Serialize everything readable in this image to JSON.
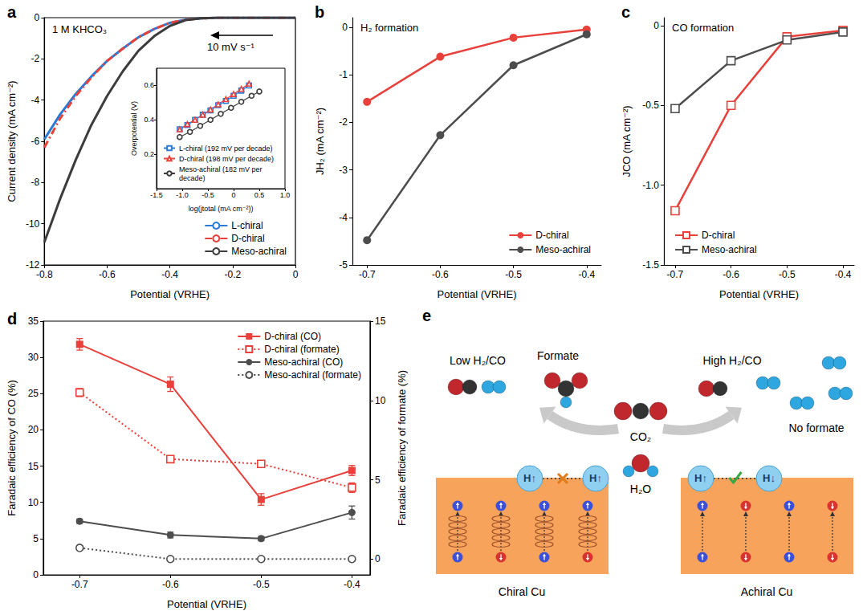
{
  "chart_data": [
    {
      "panel": "a",
      "type": "line",
      "annotations": [
        "1 M KHCO₃",
        "10 mV s⁻¹"
      ],
      "x_label": "Potential (VRHE)",
      "y_label": "Current density (mA cm⁻²)",
      "x": [
        -0.8,
        -0.75,
        -0.7,
        -0.65,
        -0.6,
        -0.55,
        -0.5,
        -0.45,
        -0.4,
        -0.35,
        -0.3,
        -0.25,
        -0.2,
        -0.1,
        0
      ],
      "series": [
        {
          "name": "L-chiral",
          "color": "#2b7bd6",
          "line_style": "solid",
          "marker": "none",
          "values": [
            -5.9,
            -4.7,
            -3.7,
            -2.85,
            -2.1,
            -1.5,
            -0.95,
            -0.55,
            -0.25,
            -0.1,
            -0.03,
            0,
            0,
            0,
            0
          ]
        },
        {
          "name": "D-chiral",
          "color": "#e8403a",
          "line_style": "dash-dot",
          "marker": "none",
          "values": [
            -6.3,
            -4.9,
            -3.8,
            -2.9,
            -2.1,
            -1.5,
            -0.95,
            -0.55,
            -0.25,
            -0.1,
            -0.03,
            0,
            0,
            0,
            0
          ]
        },
        {
          "name": "Meso-achiral",
          "color": "#3c3c3c",
          "line_style": "solid",
          "marker": "none",
          "values": [
            -10.9,
            -8.8,
            -6.9,
            -5.2,
            -3.8,
            -2.6,
            -1.6,
            -0.9,
            -0.4,
            -0.12,
            -0.03,
            0,
            0,
            0,
            0
          ]
        }
      ],
      "xlim": [
        -0.8,
        0
      ],
      "xticks": [
        -0.8,
        -0.6,
        -0.4,
        -0.2,
        0
      ],
      "ylim": [
        -12,
        0
      ],
      "yticks": [
        -12,
        -10,
        -8,
        -6,
        -4,
        -2,
        0
      ],
      "grid": false,
      "legend": "bottom-right",
      "inset": {
        "type": "line",
        "x_label": "log(jtotal (mA cm⁻²))",
        "y_label": "Overpotential (V)",
        "series": [
          {
            "name": "L-chiral (192 mV per decade)",
            "color": "#2b7bd6",
            "marker": "open-square",
            "line_style": "solid",
            "x": [
              -1.05,
              -0.9,
              -0.75,
              -0.6,
              -0.45,
              -0.3,
              -0.15,
              0,
              0.15,
              0.3
            ],
            "values": [
              0.345,
              0.37,
              0.4,
              0.43,
              0.455,
              0.485,
              0.51,
              0.54,
              0.57,
              0.6
            ]
          },
          {
            "name": "D-chiral (198 mV per decade)",
            "color": "#e8403a",
            "marker": "open-triangle",
            "line_style": "solid",
            "x": [
              -1.05,
              -0.9,
              -0.75,
              -0.6,
              -0.45,
              -0.3,
              -0.15,
              0,
              0.15,
              0.3
            ],
            "values": [
              0.345,
              0.375,
              0.4,
              0.43,
              0.46,
              0.49,
              0.52,
              0.55,
              0.58,
              0.61
            ]
          },
          {
            "name": "Meso-achiral (182 mV per decade)",
            "color": "#3c3c3c",
            "marker": "open-circle",
            "line_style": "solid",
            "x": [
              -1.05,
              -0.85,
              -0.65,
              -0.45,
              -0.25,
              -0.05,
              0.15,
              0.35,
              0.5
            ],
            "values": [
              0.3,
              0.33,
              0.365,
              0.4,
              0.435,
              0.47,
              0.505,
              0.54,
              0.565
            ]
          }
        ],
        "xlim": [
          -1.5,
          1.0
        ],
        "xticks": [
          -1.5,
          {
            "value": -1,
            "label": "-1.0"
          },
          -0.5,
          0,
          0.5,
          {
            "value": 1,
            "label": "1.0"
          }
        ],
        "ylim": [
          0,
          0.7
        ],
        "yticks": [
          0.2,
          0.4,
          0.6
        ],
        "grid": false,
        "legend": "bottom-left"
      }
    },
    {
      "panel": "b",
      "type": "line",
      "annotations": [
        "H₂ formation"
      ],
      "x_label": "Potential (VRHE)",
      "y_label": "JH₂ (mA cm⁻²)",
      "x": [
        -0.7,
        -0.6,
        -0.5,
        -0.4
      ],
      "series": [
        {
          "name": "D-chiral",
          "color": "#e8403a",
          "marker": "filled-circle",
          "line_style": "solid",
          "values": [
            -1.57,
            -0.62,
            -0.22,
            -0.05
          ]
        },
        {
          "name": "Meso-achiral",
          "color": "#4d4d4d",
          "marker": "filled-circle",
          "line_style": "solid",
          "values": [
            -4.48,
            -2.27,
            -0.8,
            -0.15
          ]
        }
      ],
      "xlim": [
        -0.72,
        -0.38
      ],
      "xticks": [
        -0.7,
        -0.6,
        -0.5,
        -0.4
      ],
      "ylim": [
        -5,
        0.2
      ],
      "yticks": [
        -5,
        -4,
        -3,
        -2,
        -1,
        0
      ],
      "grid": false,
      "legend": "bottom-right"
    },
    {
      "panel": "c",
      "type": "line",
      "annotations": [
        "CO formation"
      ],
      "x_label": "Potential (VRHE)",
      "y_label": "JCO (mA cm⁻²)",
      "x": [
        -0.7,
        -0.6,
        -0.5,
        -0.4
      ],
      "series": [
        {
          "name": "D-chiral",
          "color": "#e8403a",
          "marker": "open-square",
          "line_style": "solid",
          "values": [
            -1.16,
            -0.5,
            -0.07,
            -0.03
          ]
        },
        {
          "name": "Meso-achiral",
          "color": "#4d4d4d",
          "marker": "open-square",
          "line_style": "solid",
          "values": [
            -0.52,
            -0.22,
            -0.09,
            -0.04
          ]
        }
      ],
      "xlim": [
        -0.72,
        -0.38
      ],
      "xticks": [
        -0.7,
        -0.6,
        -0.5,
        -0.4
      ],
      "ylim": [
        -1.5,
        0.05
      ],
      "yticks": [
        -1.5,
        {
          "value": -1,
          "label": "-1.0"
        },
        -0.5,
        0
      ],
      "grid": false,
      "legend": "bottom-left"
    },
    {
      "panel": "d",
      "type": "line",
      "x_label": "Potential (VRHE)",
      "y_label": "Faradaic efficiency of CO (%)",
      "y2_label": "Faradaic efficiency of formate (%)",
      "x": [
        -0.7,
        -0.6,
        -0.5,
        -0.4
      ],
      "series": [
        {
          "name": "D-chiral (CO)",
          "color": "#e8403a",
          "marker": "filled-square",
          "line_style": "solid",
          "values": [
            31.8,
            26.3,
            10.4,
            14.4
          ],
          "errors": [
            0.8,
            1.0,
            0.8,
            0.7
          ]
        },
        {
          "name": "D-chiral (formate)",
          "color": "#e8403a",
          "marker": "open-square",
          "line_style": "dotted",
          "axis": "y2",
          "values": [
            10.5,
            6.3,
            6.0,
            4.5
          ],
          "errors": [
            0.25,
            0.2,
            0.1,
            0.3
          ]
        },
        {
          "name": "Meso-achiral (CO)",
          "color": "#4d4d4d",
          "marker": "filled-circle",
          "line_style": "solid",
          "values": [
            7.4,
            5.5,
            5.0,
            8.6
          ],
          "errors": [
            0.3,
            0.4,
            0.3,
            0.9
          ]
        },
        {
          "name": "Meso-achiral (formate)",
          "color": "#4d4d4d",
          "marker": "open-circle",
          "line_style": "dotted",
          "axis": "y2",
          "values": [
            0.7,
            0,
            0,
            0
          ],
          "errors": [
            0.15,
            0,
            0,
            0
          ]
        }
      ],
      "xlim": [
        -0.74,
        -0.38
      ],
      "xticks": [
        -0.7,
        -0.6,
        -0.5,
        -0.4
      ],
      "ylim": [
        0,
        35
      ],
      "yticks": [
        0,
        5,
        10,
        15,
        20,
        25,
        30,
        35
      ],
      "y2lim": [
        -1,
        15
      ],
      "y2ticks": [
        0,
        5,
        10,
        15
      ],
      "grid": false,
      "legend": "top-right"
    }
  ],
  "diagram": {
    "panel": "e",
    "top_left": {
      "ratio": "Low H₂/CO",
      "product": "Formate"
    },
    "center": {
      "reactants": [
        "CO₂",
        "H₂O"
      ]
    },
    "top_right": {
      "ratio": "High H₂/CO",
      "product": "No formate"
    },
    "left_surface": {
      "label": "Chiral Cu",
      "spins": [
        "H↑",
        "H↑"
      ]
    },
    "right_surface": {
      "label": "Achiral Cu",
      "spins": [
        "H↑",
        "H↓"
      ]
    }
  }
}
